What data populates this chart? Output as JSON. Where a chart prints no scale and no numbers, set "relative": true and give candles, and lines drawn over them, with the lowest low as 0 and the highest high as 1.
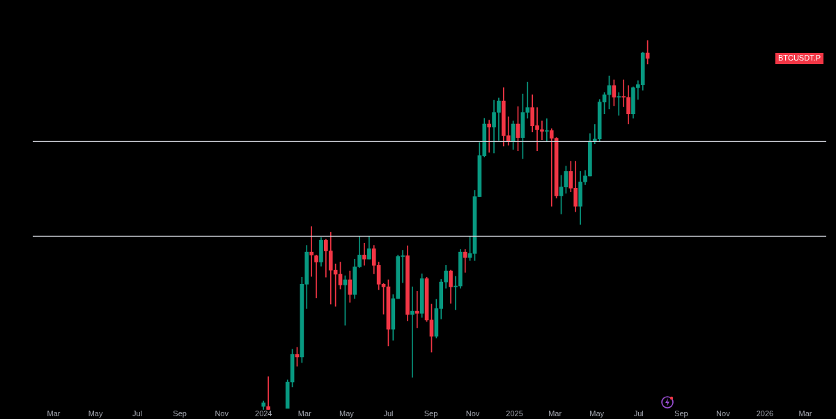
{
  "chart_data": {
    "type": "candlestick",
    "relative": true,
    "x": [
      "2024-01-01",
      "2024-01-08",
      "2024-02-05",
      "2024-02-12",
      "2024-02-19",
      "2024-02-26",
      "2024-03-04",
      "2024-03-11",
      "2024-03-18",
      "2024-03-25",
      "2024-04-01",
      "2024-04-08",
      "2024-04-15",
      "2024-04-22",
      "2024-04-29",
      "2024-05-06",
      "2024-05-13",
      "2024-05-20",
      "2024-05-27",
      "2024-06-03",
      "2024-06-10",
      "2024-06-17",
      "2024-06-24",
      "2024-07-01",
      "2024-07-08",
      "2024-07-15",
      "2024-07-22",
      "2024-07-29",
      "2024-08-05",
      "2024-08-12",
      "2024-08-19",
      "2024-08-26",
      "2024-09-02",
      "2024-09-09",
      "2024-09-16",
      "2024-09-23",
      "2024-09-30",
      "2024-10-07",
      "2024-10-14",
      "2024-10-21",
      "2024-10-28",
      "2024-11-04",
      "2024-11-11",
      "2024-11-18",
      "2024-11-25",
      "2024-12-02",
      "2024-12-09",
      "2024-12-16",
      "2024-12-23",
      "2024-12-30",
      "2025-01-06",
      "2025-01-13",
      "2025-01-20",
      "2025-01-27",
      "2025-02-03",
      "2025-02-10",
      "2025-02-17",
      "2025-02-24",
      "2025-03-03",
      "2025-03-10",
      "2025-03-17",
      "2025-03-24",
      "2025-03-31",
      "2025-04-07",
      "2025-04-14",
      "2025-04-21",
      "2025-04-28",
      "2025-05-05",
      "2025-05-12",
      "2025-05-19",
      "2025-05-26",
      "2025-06-02",
      "2025-06-09",
      "2025-06-16",
      "2025-06-23",
      "2025-06-30",
      "2025-07-07",
      "2025-07-14"
    ],
    "ohlc": [
      [
        0.009,
        0.024,
        0,
        0.019
      ],
      [
        0.009,
        0.09,
        0,
        0
      ],
      [
        0.004,
        0.081,
        0.004,
        0.075
      ],
      [
        0.075,
        0.164,
        0.062,
        0.15
      ],
      [
        0.15,
        0.169,
        0.118,
        0.143
      ],
      [
        0.143,
        0.359,
        0.128,
        0.34
      ],
      [
        0.34,
        0.445,
        0.274,
        0.427
      ],
      [
        0.427,
        0.496,
        0.361,
        0.419
      ],
      [
        0.417,
        0.419,
        0.303,
        0.4
      ],
      [
        0.4,
        0.466,
        0.389,
        0.459
      ],
      [
        0.459,
        0.462,
        0.359,
        0.43
      ],
      [
        0.43,
        0.481,
        0.286,
        0.378
      ],
      [
        0.378,
        0.395,
        0.28,
        0.367
      ],
      [
        0.367,
        0.4,
        0.327,
        0.338
      ],
      [
        0.338,
        0.363,
        0.229,
        0.352
      ],
      [
        0.352,
        0.376,
        0.291,
        0.312
      ],
      [
        0.312,
        0.408,
        0.301,
        0.387
      ],
      [
        0.387,
        0.47,
        0.385,
        0.419
      ],
      [
        0.419,
        0.451,
        0.391,
        0.408
      ],
      [
        0.408,
        0.47,
        0.408,
        0.436
      ],
      [
        0.436,
        0.445,
        0.368,
        0.391
      ],
      [
        0.391,
        0.4,
        0.325,
        0.34
      ],
      [
        0.34,
        0.342,
        0.259,
        0.333
      ],
      [
        0.333,
        0.352,
        0.173,
        0.218
      ],
      [
        0.218,
        0.312,
        0.188,
        0.301
      ],
      [
        0.301,
        0.419,
        0.301,
        0.415
      ],
      [
        0.415,
        0.432,
        0.344,
        0.417
      ],
      [
        0.417,
        0.444,
        0.241,
        0.258
      ],
      [
        0.258,
        0.333,
        0.088,
        0.267
      ],
      [
        0.267,
        0.321,
        0.222,
        0.261
      ],
      [
        0.261,
        0.368,
        0.25,
        0.355
      ],
      [
        0.355,
        0.359,
        0.239,
        0.243
      ],
      [
        0.243,
        0.286,
        0.156,
        0.199
      ],
      [
        0.199,
        0.299,
        0.194,
        0.274
      ],
      [
        0.274,
        0.353,
        0.246,
        0.346
      ],
      [
        0.346,
        0.391,
        0.329,
        0.376
      ],
      [
        0.376,
        0.378,
        0.288,
        0.333
      ],
      [
        0.333,
        0.361,
        0.271,
        0.335
      ],
      [
        0.335,
        0.434,
        0.329,
        0.427
      ],
      [
        0.427,
        0.434,
        0.372,
        0.412
      ],
      [
        0.412,
        0.47,
        0.404,
        0.423
      ],
      [
        0.423,
        0.594,
        0.404,
        0.577
      ],
      [
        0.577,
        0.724,
        0.577,
        0.688
      ],
      [
        0.688,
        0.789,
        0.684,
        0.774
      ],
      [
        0.774,
        0.784,
        0.697,
        0.765
      ],
      [
        0.765,
        0.838,
        0.695,
        0.805
      ],
      [
        0.805,
        0.844,
        0.729,
        0.836
      ],
      [
        0.836,
        0.872,
        0.714,
        0.742
      ],
      [
        0.742,
        0.793,
        0.716,
        0.727
      ],
      [
        0.727,
        0.782,
        0.705,
        0.774
      ],
      [
        0.774,
        0.821,
        0.701,
        0.737
      ],
      [
        0.737,
        0.855,
        0.68,
        0.805
      ],
      [
        0.805,
        0.887,
        0.789,
        0.818
      ],
      [
        0.818,
        0.853,
        0.752,
        0.769
      ],
      [
        0.769,
        0.818,
        0.701,
        0.758
      ],
      [
        0.758,
        0.782,
        0.731,
        0.754
      ],
      [
        0.754,
        0.788,
        0.726,
        0.756
      ],
      [
        0.756,
        0.761,
        0.551,
        0.735
      ],
      [
        0.735,
        0.737,
        0.573,
        0.579
      ],
      [
        0.579,
        0.635,
        0.53,
        0.603
      ],
      [
        0.603,
        0.66,
        0.586,
        0.645
      ],
      [
        0.645,
        0.673,
        0.59,
        0.6
      ],
      [
        0.6,
        0.673,
        0.536,
        0.551
      ],
      [
        0.551,
        0.645,
        0.502,
        0.617
      ],
      [
        0.617,
        0.648,
        0.609,
        0.633
      ],
      [
        0.633,
        0.748,
        0.633,
        0.727
      ],
      [
        0.727,
        0.773,
        0.72,
        0.733
      ],
      [
        0.733,
        0.84,
        0.727,
        0.833
      ],
      [
        0.833,
        0.859,
        0.801,
        0.853
      ],
      [
        0.853,
        0.904,
        0.814,
        0.878
      ],
      [
        0.878,
        0.893,
        0.823,
        0.846
      ],
      [
        0.846,
        0.859,
        0.797,
        0.848
      ],
      [
        0.848,
        0.893,
        0.82,
        0.846
      ],
      [
        0.846,
        0.878,
        0.774,
        0.801
      ],
      [
        0.801,
        0.874,
        0.789,
        0.872
      ],
      [
        0.872,
        0.891,
        0.84,
        0.88
      ],
      [
        0.88,
        0.968,
        0.865,
        0.966
      ],
      [
        0.966,
        1,
        0.936,
        0.951
      ]
    ],
    "colors": [
      "#089981",
      "#f23645",
      "#089981",
      "#089981",
      "#f23645",
      "#089981",
      "#089981",
      "#f23645",
      "#f23645",
      "#089981",
      "#f23645",
      "#f23645",
      "#f23645",
      "#f23645",
      "#089981",
      "#f23645",
      "#089981",
      "#089981",
      "#f23645",
      "#089981",
      "#f23645",
      "#f23645",
      "#f23645",
      "#f23645",
      "#089981",
      "#089981",
      "#089981",
      "#f23645",
      "#089981",
      "#f23645",
      "#089981",
      "#f23645",
      "#f23645",
      "#089981",
      "#089981",
      "#089981",
      "#f23645",
      "#089981",
      "#089981",
      "#f23645",
      "#089981",
      "#089981",
      "#089981",
      "#089981",
      "#f23645",
      "#089981",
      "#089981",
      "#f23645",
      "#f23645",
      "#089981",
      "#f23645",
      "#089981",
      "#089981",
      "#f23645",
      "#f23645",
      "#f23645",
      "#089981",
      "#f23645",
      "#f23645",
      "#089981",
      "#089981",
      "#f23645",
      "#f23645",
      "#089981",
      "#089981",
      "#089981",
      "#089981",
      "#089981",
      "#089981",
      "#089981",
      "#f23645",
      "#089981",
      "#f23645",
      "#f23645",
      "#089981",
      "#089981",
      "#089981",
      "#f23645"
    ],
    "xlim": [
      "2023-03-01",
      "2026-03-01"
    ],
    "xticks": [
      {
        "value": "2023-03-01",
        "label": "Mar"
      },
      {
        "value": "2023-05-01",
        "label": "May"
      },
      {
        "value": "2023-07-01",
        "label": "Jul"
      },
      {
        "value": "2023-09-01",
        "label": "Sep"
      },
      {
        "value": "2023-11-01",
        "label": "Nov"
      },
      {
        "value": "2024-01-01",
        "label": "2024"
      },
      {
        "value": "2024-03-01",
        "label": "Mar"
      },
      {
        "value": "2024-05-01",
        "label": "May"
      },
      {
        "value": "2024-07-01",
        "label": "Jul"
      },
      {
        "value": "2024-09-01",
        "label": "Sep"
      },
      {
        "value": "2024-11-01",
        "label": "Nov"
      },
      {
        "value": "2025-01-01",
        "label": "2025"
      },
      {
        "value": "2025-03-01",
        "label": "Mar"
      },
      {
        "value": "2025-05-01",
        "label": "May"
      },
      {
        "value": "2025-07-01",
        "label": "Jul"
      },
      {
        "value": "2025-09-01",
        "label": "Sep"
      },
      {
        "value": "2025-11-01",
        "label": "Nov"
      },
      {
        "value": "2026-01-01",
        "label": "2026"
      },
      {
        "value": "2026-03-01",
        "label": "Mar"
      }
    ],
    "ref_lines": [
      {
        "axis": "y",
        "value": 0.726,
        "color": "#d1d4dc"
      },
      {
        "axis": "y",
        "value": 0.47,
        "color": "#d1d4dc"
      }
    ],
    "annotations": [
      "BTCUSDT.P"
    ]
  }
}
